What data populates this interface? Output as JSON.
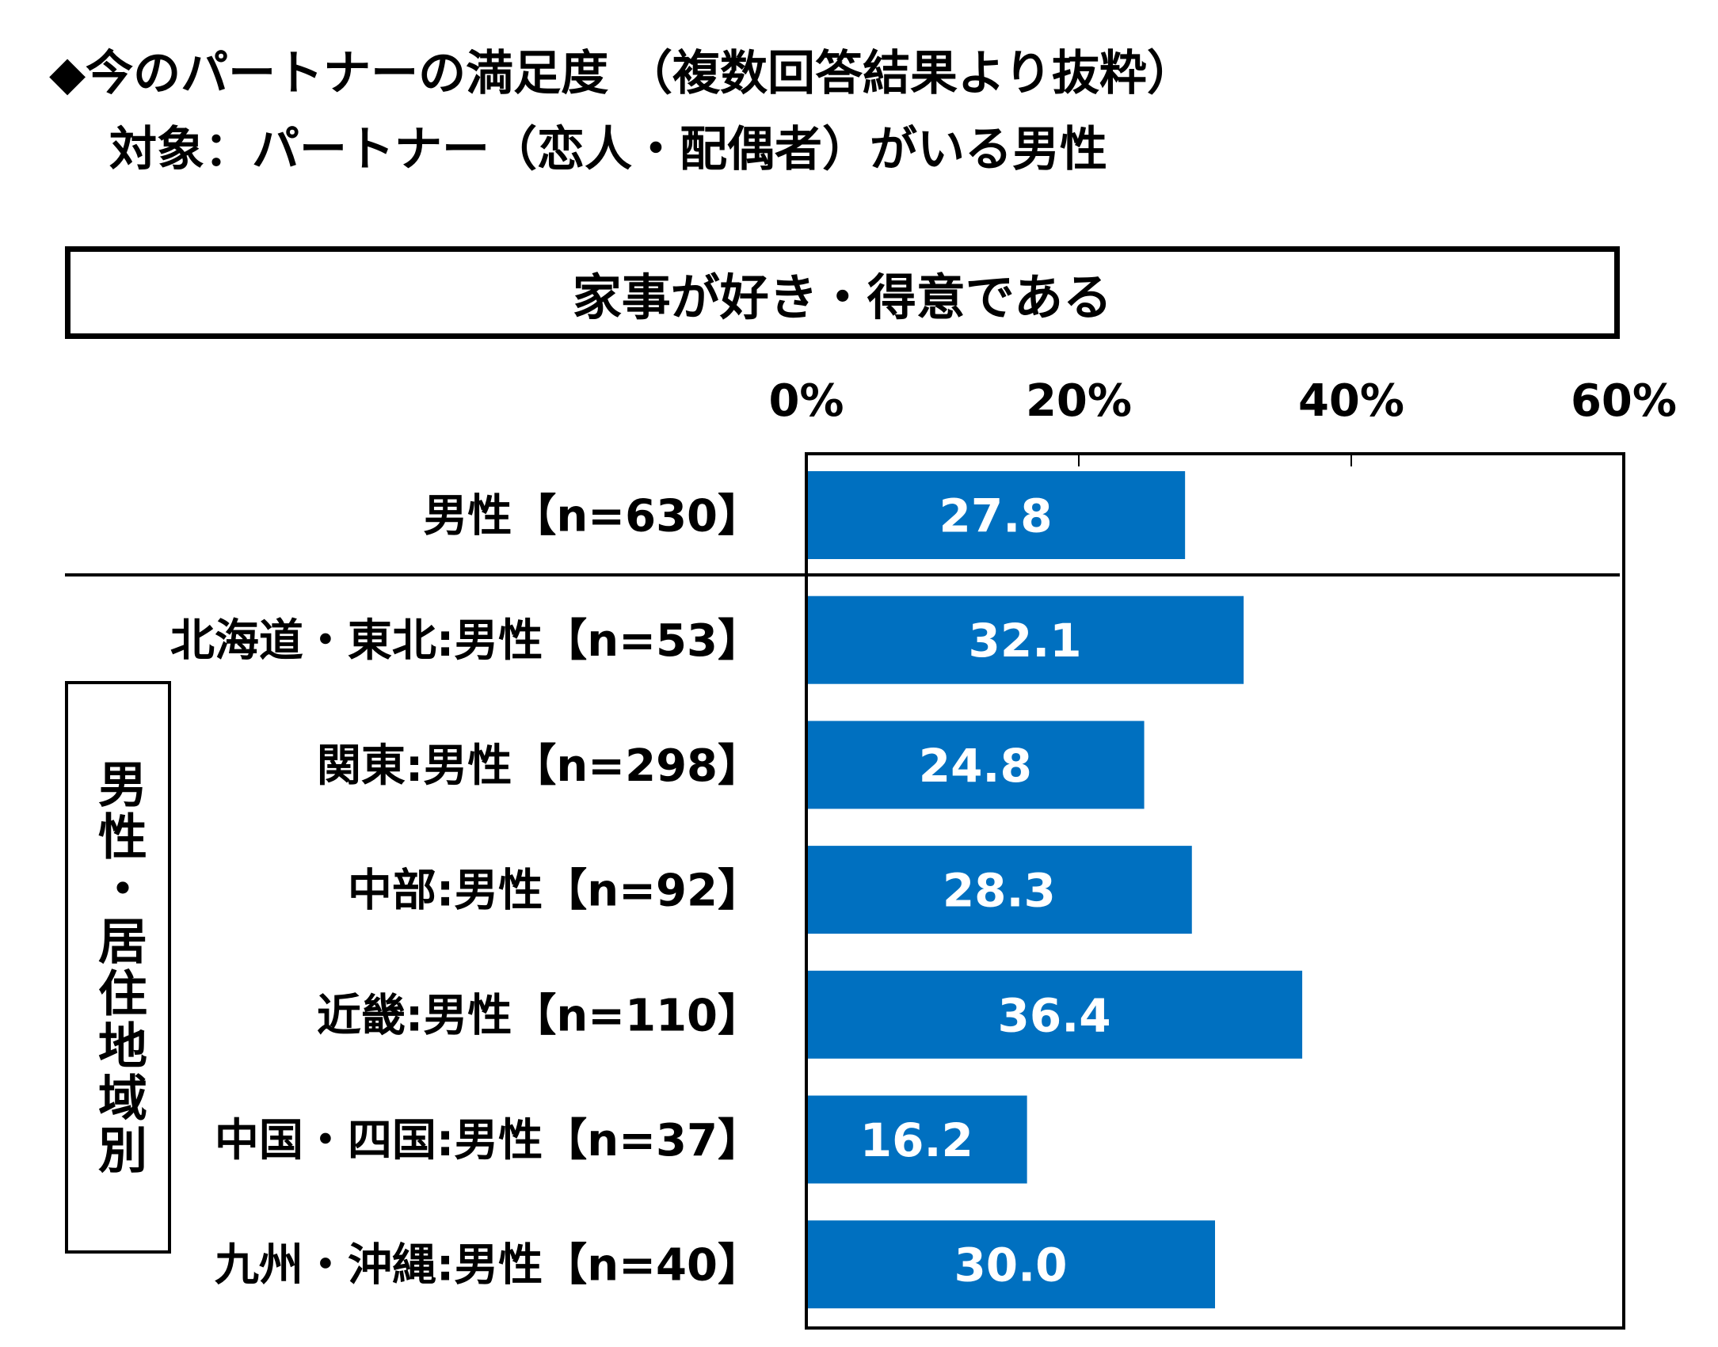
{
  "title_line1": "◆今のパートナーの満足度 （複数回答結果より抜粋）",
  "title_line2": "対象：パートナー（恋人・配偶者）がいる男性",
  "subtitle": "家事が好き・得意である",
  "group_label": "男性・居住地域別",
  "colors": {
    "bar": "#0070C0",
    "value_text": "#ffffff",
    "axis": "#000000"
  },
  "chart_data": {
    "type": "bar",
    "orientation": "horizontal",
    "categories": [
      "男性【n=630】",
      "北海道・東北:男性【n=53】",
      "関東:男性【n=298】",
      "中部:男性【n=92】",
      "近畿:男性【n=110】",
      "中国・四国:男性【n=37】",
      "九州・沖縄:男性【n=40】"
    ],
    "values": [
      27.8,
      32.1,
      24.8,
      28.3,
      36.4,
      16.2,
      30.0
    ],
    "value_labels": [
      "27.8",
      "32.1",
      "24.8",
      "28.3",
      "36.4",
      "16.2",
      "30.0"
    ],
    "xlim": [
      0,
      60
    ],
    "ticks": [
      0,
      20,
      40,
      60
    ],
    "tick_labels": [
      "0%",
      "20%",
      "40%",
      "60%"
    ],
    "grid": false,
    "title": "",
    "xlabel": "",
    "ylabel": ""
  }
}
